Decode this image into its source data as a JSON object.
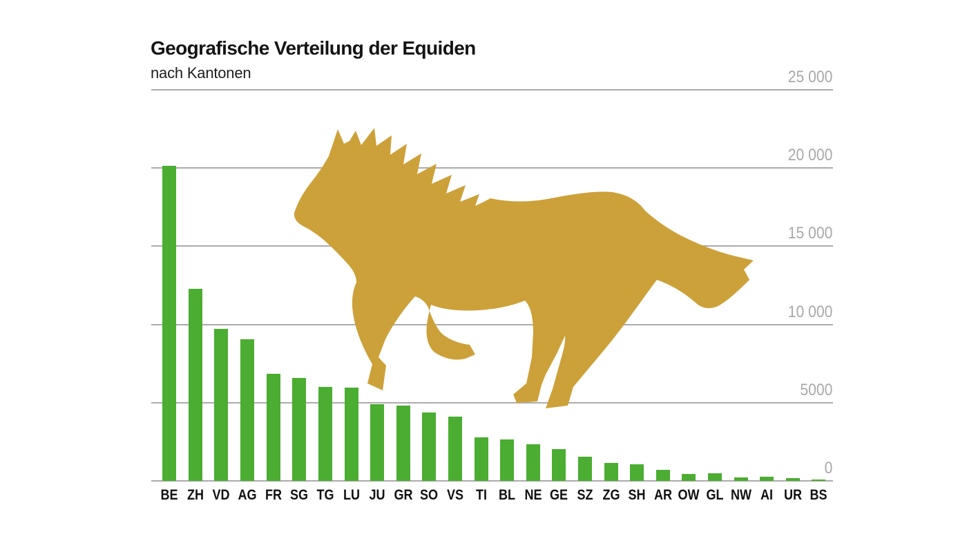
{
  "header": {
    "title": "Geografische Verteilung der Equiden",
    "subtitle": "nach Kantonen"
  },
  "chart_data": {
    "type": "bar",
    "title": "Geografische Verteilung der Equiden",
    "subtitle": "nach Kantonen",
    "categories": [
      "BE",
      "ZH",
      "VD",
      "AG",
      "FR",
      "SG",
      "TG",
      "LU",
      "JU",
      "GR",
      "SO",
      "VS",
      "TI",
      "BL",
      "NE",
      "GE",
      "SZ",
      "ZG",
      "SH",
      "AR",
      "OW",
      "GL",
      "NW",
      "AI",
      "UR",
      "BS"
    ],
    "values": [
      20150,
      12280,
      9700,
      9050,
      6850,
      6600,
      6000,
      5950,
      4900,
      4800,
      4370,
      4100,
      2800,
      2640,
      2340,
      2020,
      1550,
      1140,
      1060,
      690,
      450,
      470,
      220,
      260,
      180,
      75
    ],
    "xlabel": "",
    "ylabel": "",
    "ylim": [
      0,
      25000
    ],
    "yticks": [
      {
        "value": 25000,
        "label": "25 000"
      },
      {
        "value": 20000,
        "label": "20 000"
      },
      {
        "value": 15000,
        "label": "15 000"
      },
      {
        "value": 10000,
        "label": "10 000"
      },
      {
        "value": 5000,
        "label": "5000"
      },
      {
        "value": 0,
        "label": "0"
      }
    ],
    "grid": "horizontal",
    "legend": "none",
    "decoration": "golden galloping horse silhouette",
    "colors": {
      "bar": "#4BAD31",
      "horse": "#CDA139",
      "grid": "#ABABAB",
      "tick_label": "#A8A8A8",
      "text": "#141414"
    }
  }
}
